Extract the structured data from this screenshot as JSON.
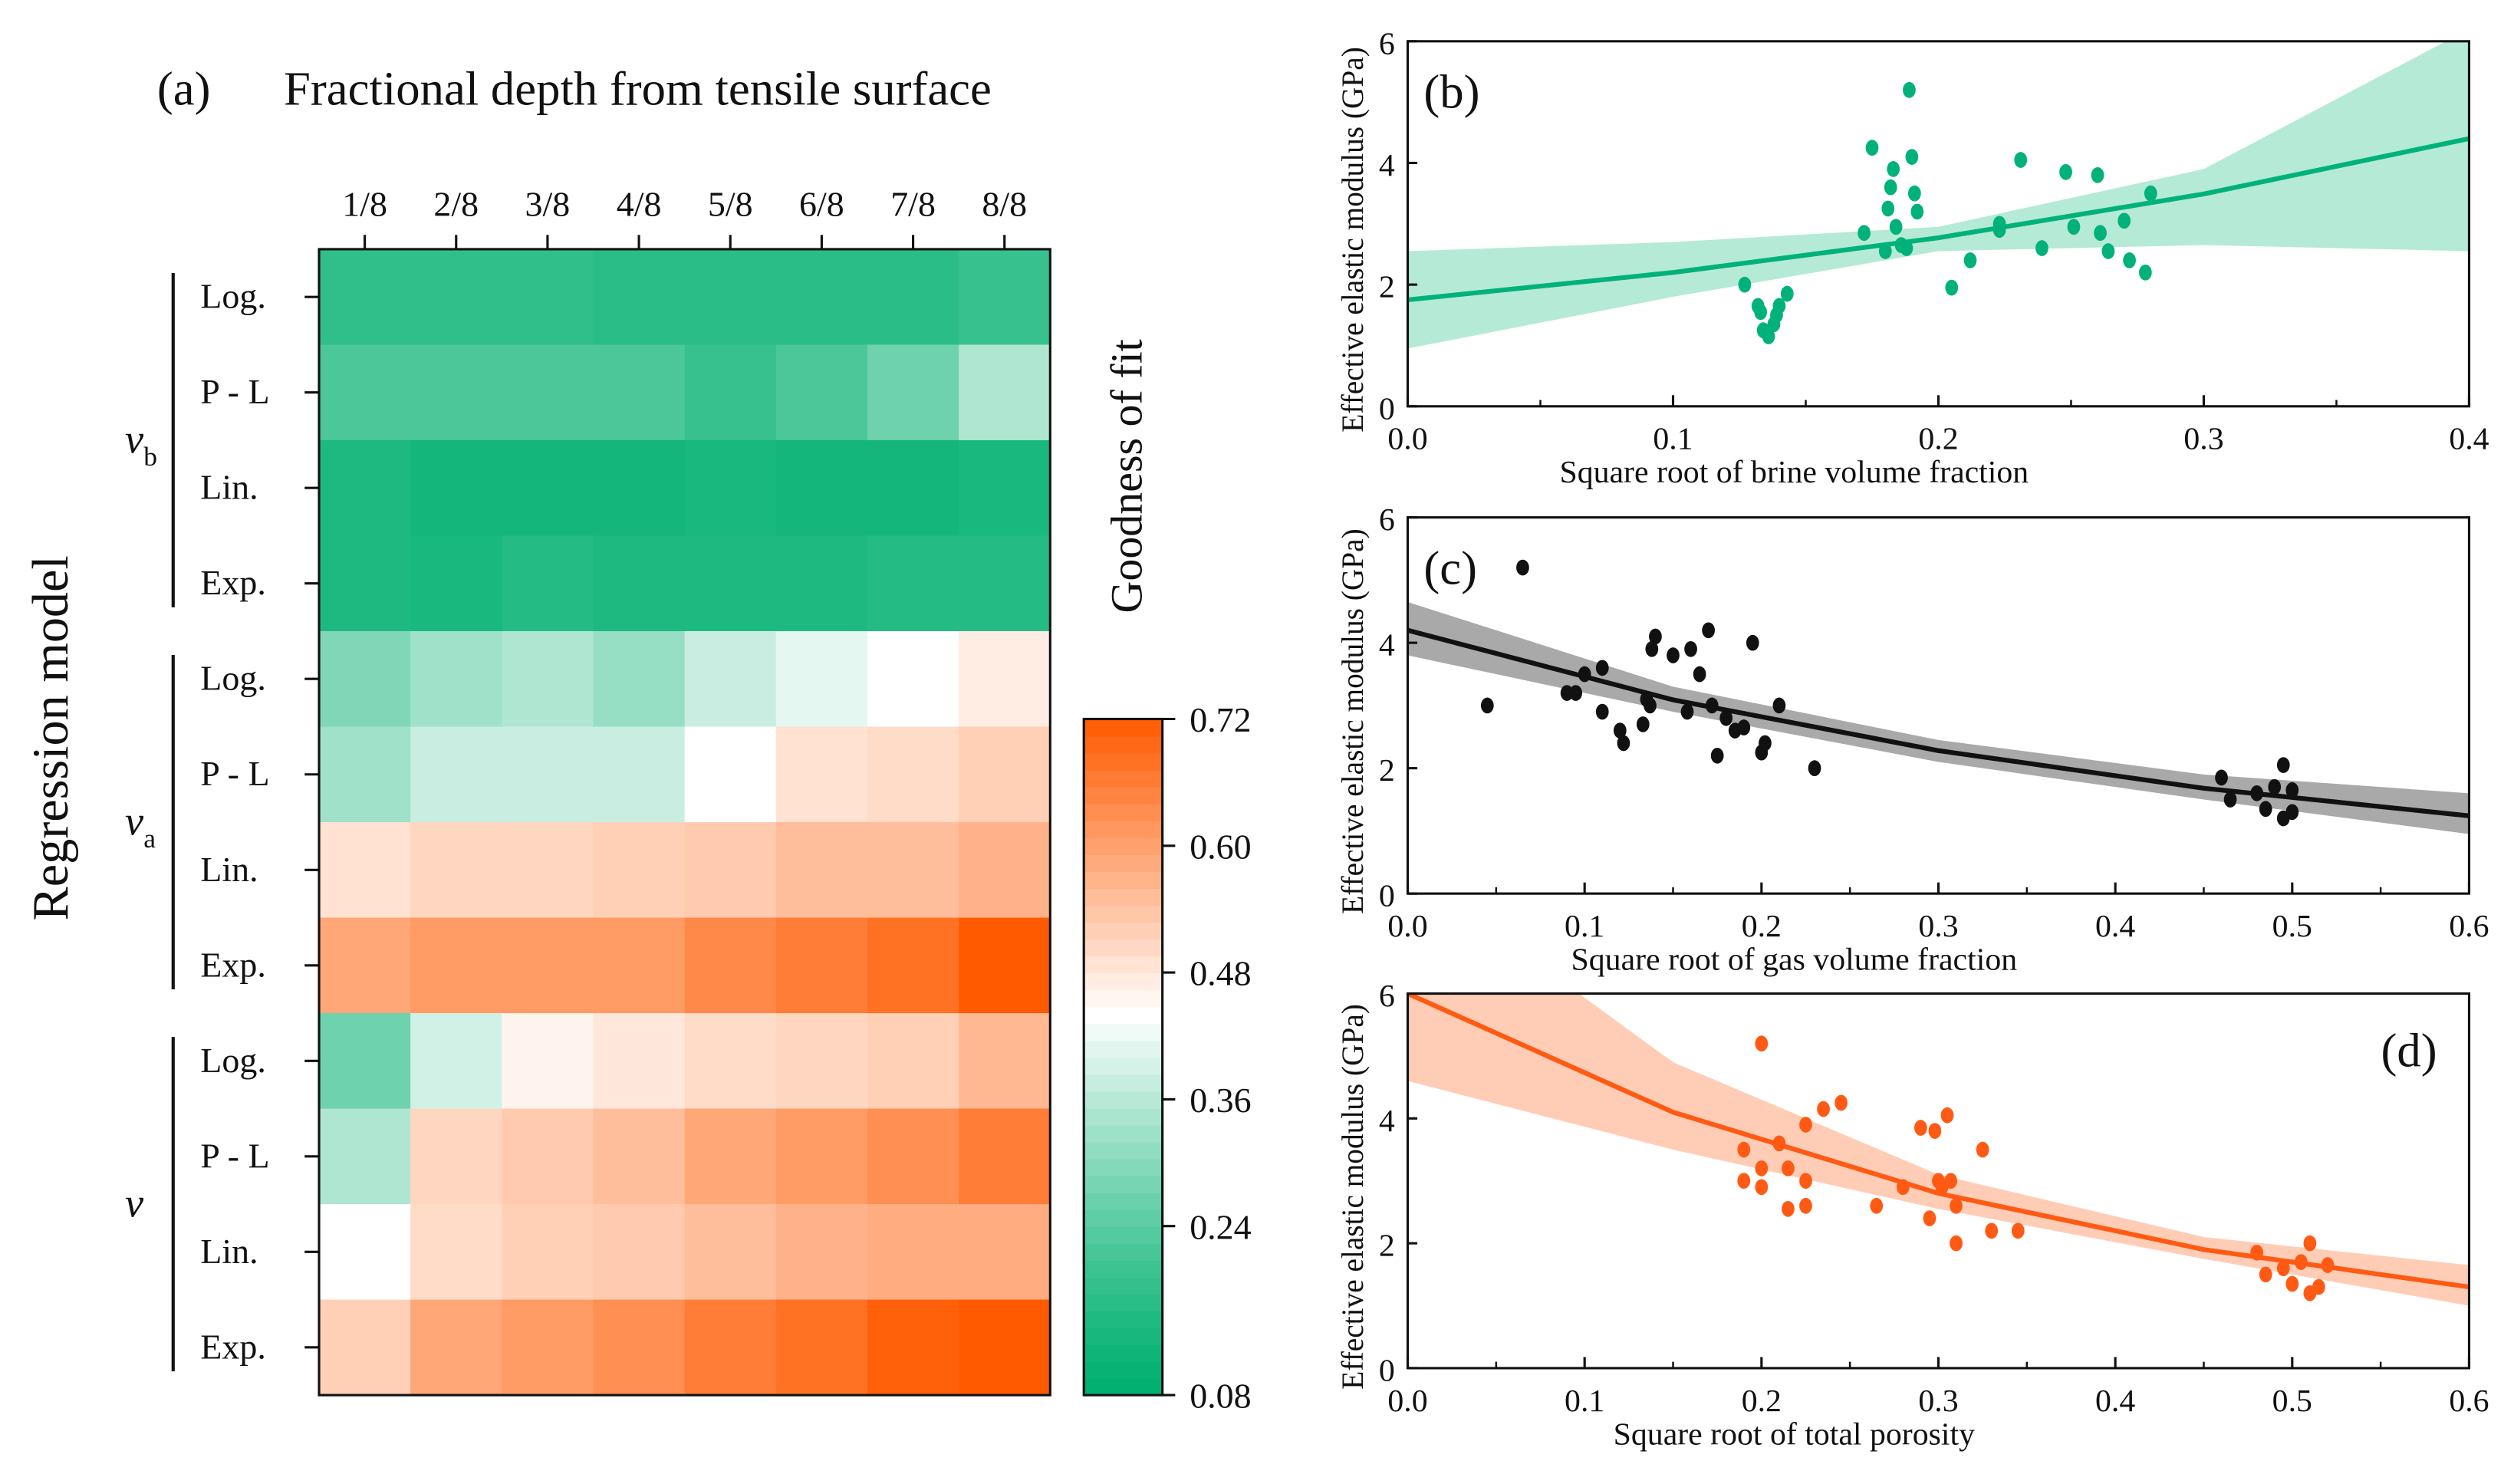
{
  "chart_data": [
    {
      "type": "heatmap",
      "panel_label": "(a)",
      "title": "Fractional depth from tensile surface",
      "ylabel": "Regression model",
      "colorbar_label": "Goodness of fit",
      "columns": [
        "1/8",
        "2/8",
        "3/8",
        "4/8",
        "5/8",
        "6/8",
        "7/8",
        "8/8"
      ],
      "groups": [
        {
          "name": "v",
          "sub": "b",
          "rows": [
            "Log.",
            "P - L",
            "Lin.",
            "Exp."
          ]
        },
        {
          "name": "v",
          "sub": "a",
          "rows": [
            "Log.",
            "P - L",
            "Lin.",
            "Exp."
          ]
        },
        {
          "name": "v",
          "sub": "",
          "rows": [
            "Log.",
            "P - L",
            "Lin.",
            "Exp."
          ]
        }
      ],
      "values": [
        [
          0.18,
          0.18,
          0.18,
          0.17,
          0.17,
          0.17,
          0.17,
          0.19
        ],
        [
          0.22,
          0.22,
          0.22,
          0.22,
          0.19,
          0.22,
          0.27,
          0.35
        ],
        [
          0.15,
          0.13,
          0.13,
          0.13,
          0.14,
          0.13,
          0.13,
          0.14
        ],
        [
          0.15,
          0.14,
          0.16,
          0.15,
          0.15,
          0.15,
          0.16,
          0.16
        ],
        [
          0.29,
          0.33,
          0.35,
          0.32,
          0.38,
          0.41,
          0.44,
          0.47
        ],
        [
          0.33,
          0.38,
          0.38,
          0.38,
          0.44,
          0.49,
          0.5,
          0.52
        ],
        [
          0.49,
          0.51,
          0.51,
          0.52,
          0.53,
          0.55,
          0.55,
          0.57
        ],
        [
          0.59,
          0.61,
          0.61,
          0.61,
          0.64,
          0.66,
          0.68,
          0.72
        ],
        [
          0.27,
          0.39,
          0.46,
          0.48,
          0.5,
          0.51,
          0.52,
          0.56
        ],
        [
          0.35,
          0.51,
          0.53,
          0.55,
          0.59,
          0.61,
          0.63,
          0.66
        ],
        [
          0.44,
          0.5,
          0.52,
          0.53,
          0.55,
          0.57,
          0.58,
          0.58
        ],
        [
          0.52,
          0.59,
          0.61,
          0.63,
          0.66,
          0.68,
          0.71,
          0.72
        ]
      ],
      "colorbar_range": [
        0.08,
        0.72
      ],
      "colorbar_ticks": [
        "0.72",
        "0.60",
        "0.48",
        "0.36",
        "0.24",
        "0.08"
      ],
      "colors": {
        "low": "#00b070",
        "mid": "#ffffff",
        "high": "#ff5a00"
      }
    },
    {
      "type": "scatter",
      "panel_label": "(b)",
      "xlabel": "Square root of brine volume fraction",
      "ylabel": "Effective elastic modulus (GPa)",
      "xlim": [
        0,
        0.4
      ],
      "ylim": [
        0,
        6
      ],
      "xticks": [
        "0.0",
        "0.1",
        "0.2",
        "0.3",
        "0.4"
      ],
      "yticks": [
        "0",
        "2",
        "4",
        "6"
      ],
      "color": "#00b27a",
      "band_color": "#a8e6cf",
      "points": [
        [
          0.127,
          2.0
        ],
        [
          0.132,
          1.65
        ],
        [
          0.133,
          1.55
        ],
        [
          0.134,
          1.25
        ],
        [
          0.136,
          1.15
        ],
        [
          0.138,
          1.35
        ],
        [
          0.139,
          1.5
        ],
        [
          0.14,
          1.65
        ],
        [
          0.143,
          1.85
        ],
        [
          0.172,
          2.85
        ],
        [
          0.175,
          4.25
        ],
        [
          0.18,
          2.55
        ],
        [
          0.181,
          3.25
        ],
        [
          0.182,
          3.6
        ],
        [
          0.183,
          3.9
        ],
        [
          0.184,
          2.95
        ],
        [
          0.186,
          2.65
        ],
        [
          0.189,
          5.2
        ],
        [
          0.19,
          4.1
        ],
        [
          0.191,
          3.5
        ],
        [
          0.192,
          3.2
        ],
        [
          0.188,
          2.6
        ],
        [
          0.205,
          1.95
        ],
        [
          0.212,
          2.4
        ],
        [
          0.223,
          2.9
        ],
        [
          0.223,
          3.0
        ],
        [
          0.231,
          4.05
        ],
        [
          0.239,
          2.6
        ],
        [
          0.248,
          3.85
        ],
        [
          0.251,
          2.95
        ],
        [
          0.26,
          3.8
        ],
        [
          0.261,
          2.85
        ],
        [
          0.264,
          2.55
        ],
        [
          0.27,
          3.05
        ],
        [
          0.272,
          2.4
        ],
        [
          0.278,
          2.2
        ],
        [
          0.28,
          3.5
        ]
      ],
      "fit": {
        "x": [
          0,
          0.1,
          0.2,
          0.3,
          0.4
        ],
        "y": [
          1.75,
          2.2,
          2.77,
          3.49,
          4.4
        ],
        "lower": [
          0.95,
          1.8,
          2.55,
          2.65,
          2.55
        ],
        "upper": [
          2.55,
          2.7,
          2.95,
          3.9,
          6.2
        ]
      }
    },
    {
      "type": "scatter",
      "panel_label": "(c)",
      "xlabel": "Square root of gas volume fraction",
      "ylabel": "Effective elastic modulus (GPa)",
      "xlim": [
        0,
        0.6
      ],
      "ylim": [
        0,
        6
      ],
      "xticks": [
        "0.0",
        "0.1",
        "0.2",
        "0.3",
        "0.4",
        "0.5",
        "0.6"
      ],
      "yticks": [
        "0",
        "2",
        "4",
        "6"
      ],
      "color": "#111111",
      "band_color": "#9a9a9a",
      "points": [
        [
          0.045,
          3.0
        ],
        [
          0.065,
          5.2
        ],
        [
          0.09,
          3.2
        ],
        [
          0.095,
          3.2
        ],
        [
          0.1,
          3.5
        ],
        [
          0.11,
          3.6
        ],
        [
          0.11,
          2.9
        ],
        [
          0.12,
          2.6
        ],
        [
          0.122,
          2.4
        ],
        [
          0.135,
          3.1
        ],
        [
          0.137,
          3.0
        ],
        [
          0.133,
          2.7
        ],
        [
          0.14,
          4.1
        ],
        [
          0.138,
          3.9
        ],
        [
          0.15,
          3.8
        ],
        [
          0.16,
          3.9
        ],
        [
          0.158,
          2.9
        ],
        [
          0.165,
          3.5
        ],
        [
          0.17,
          4.2
        ],
        [
          0.172,
          3.0
        ],
        [
          0.175,
          2.2
        ],
        [
          0.18,
          2.8
        ],
        [
          0.185,
          2.6
        ],
        [
          0.19,
          2.65
        ],
        [
          0.195,
          4.0
        ],
        [
          0.2,
          2.25
        ],
        [
          0.202,
          2.4
        ],
        [
          0.21,
          3.0
        ],
        [
          0.23,
          2.0
        ],
        [
          0.46,
          1.85
        ],
        [
          0.465,
          1.5
        ],
        [
          0.48,
          1.6
        ],
        [
          0.485,
          1.35
        ],
        [
          0.49,
          1.7
        ],
        [
          0.495,
          2.05
        ],
        [
          0.495,
          1.2
        ],
        [
          0.5,
          1.3
        ],
        [
          0.5,
          1.65
        ]
      ],
      "fit": {
        "x": [
          0,
          0.15,
          0.3,
          0.45,
          0.6
        ],
        "y": [
          4.2,
          3.09,
          2.28,
          1.68,
          1.24
        ],
        "lower": [
          3.8,
          2.9,
          2.1,
          1.5,
          0.95
        ],
        "upper": [
          4.65,
          3.3,
          2.45,
          1.9,
          1.6
        ]
      }
    },
    {
      "type": "scatter",
      "panel_label": "(d)",
      "xlabel": "Square root of total porosity",
      "ylabel": "Effective elastic modulus (GPa)",
      "xlim": [
        0,
        0.6
      ],
      "ylim": [
        0,
        6
      ],
      "xticks": [
        "0.0",
        "0.1",
        "0.2",
        "0.3",
        "0.4",
        "0.5",
        "0.6"
      ],
      "yticks": [
        "0",
        "2",
        "4",
        "6"
      ],
      "color": "#ff5a14",
      "band_color": "#ffc4a8",
      "points": [
        [
          0.19,
          3.0
        ],
        [
          0.19,
          3.5
        ],
        [
          0.2,
          5.2
        ],
        [
          0.2,
          3.2
        ],
        [
          0.2,
          2.9
        ],
        [
          0.21,
          3.6
        ],
        [
          0.215,
          3.2
        ],
        [
          0.215,
          2.55
        ],
        [
          0.225,
          3.0
        ],
        [
          0.225,
          2.6
        ],
        [
          0.225,
          3.9
        ],
        [
          0.235,
          4.15
        ],
        [
          0.245,
          4.25
        ],
        [
          0.265,
          2.6
        ],
        [
          0.28,
          2.9
        ],
        [
          0.29,
          3.85
        ],
        [
          0.295,
          2.4
        ],
        [
          0.3,
          3.0
        ],
        [
          0.298,
          3.8
        ],
        [
          0.302,
          2.9
        ],
        [
          0.305,
          4.05
        ],
        [
          0.307,
          3.0
        ],
        [
          0.31,
          2.6
        ],
        [
          0.31,
          2.0
        ],
        [
          0.325,
          3.5
        ],
        [
          0.33,
          2.2
        ],
        [
          0.345,
          2.2
        ],
        [
          0.48,
          1.85
        ],
        [
          0.485,
          1.5
        ],
        [
          0.495,
          1.6
        ],
        [
          0.5,
          1.35
        ],
        [
          0.505,
          1.7
        ],
        [
          0.51,
          2.0
        ],
        [
          0.51,
          1.2
        ],
        [
          0.515,
          1.3
        ],
        [
          0.52,
          1.65
        ]
      ],
      "fit": {
        "x": [
          0,
          0.15,
          0.3,
          0.45,
          0.6
        ],
        "y": [
          6.0,
          4.1,
          2.8,
          1.9,
          1.3
        ],
        "lower": [
          4.6,
          3.5,
          2.55,
          1.75,
          1.0
        ],
        "upper": [
          8.0,
          4.9,
          3.1,
          2.1,
          1.65
        ]
      }
    }
  ]
}
